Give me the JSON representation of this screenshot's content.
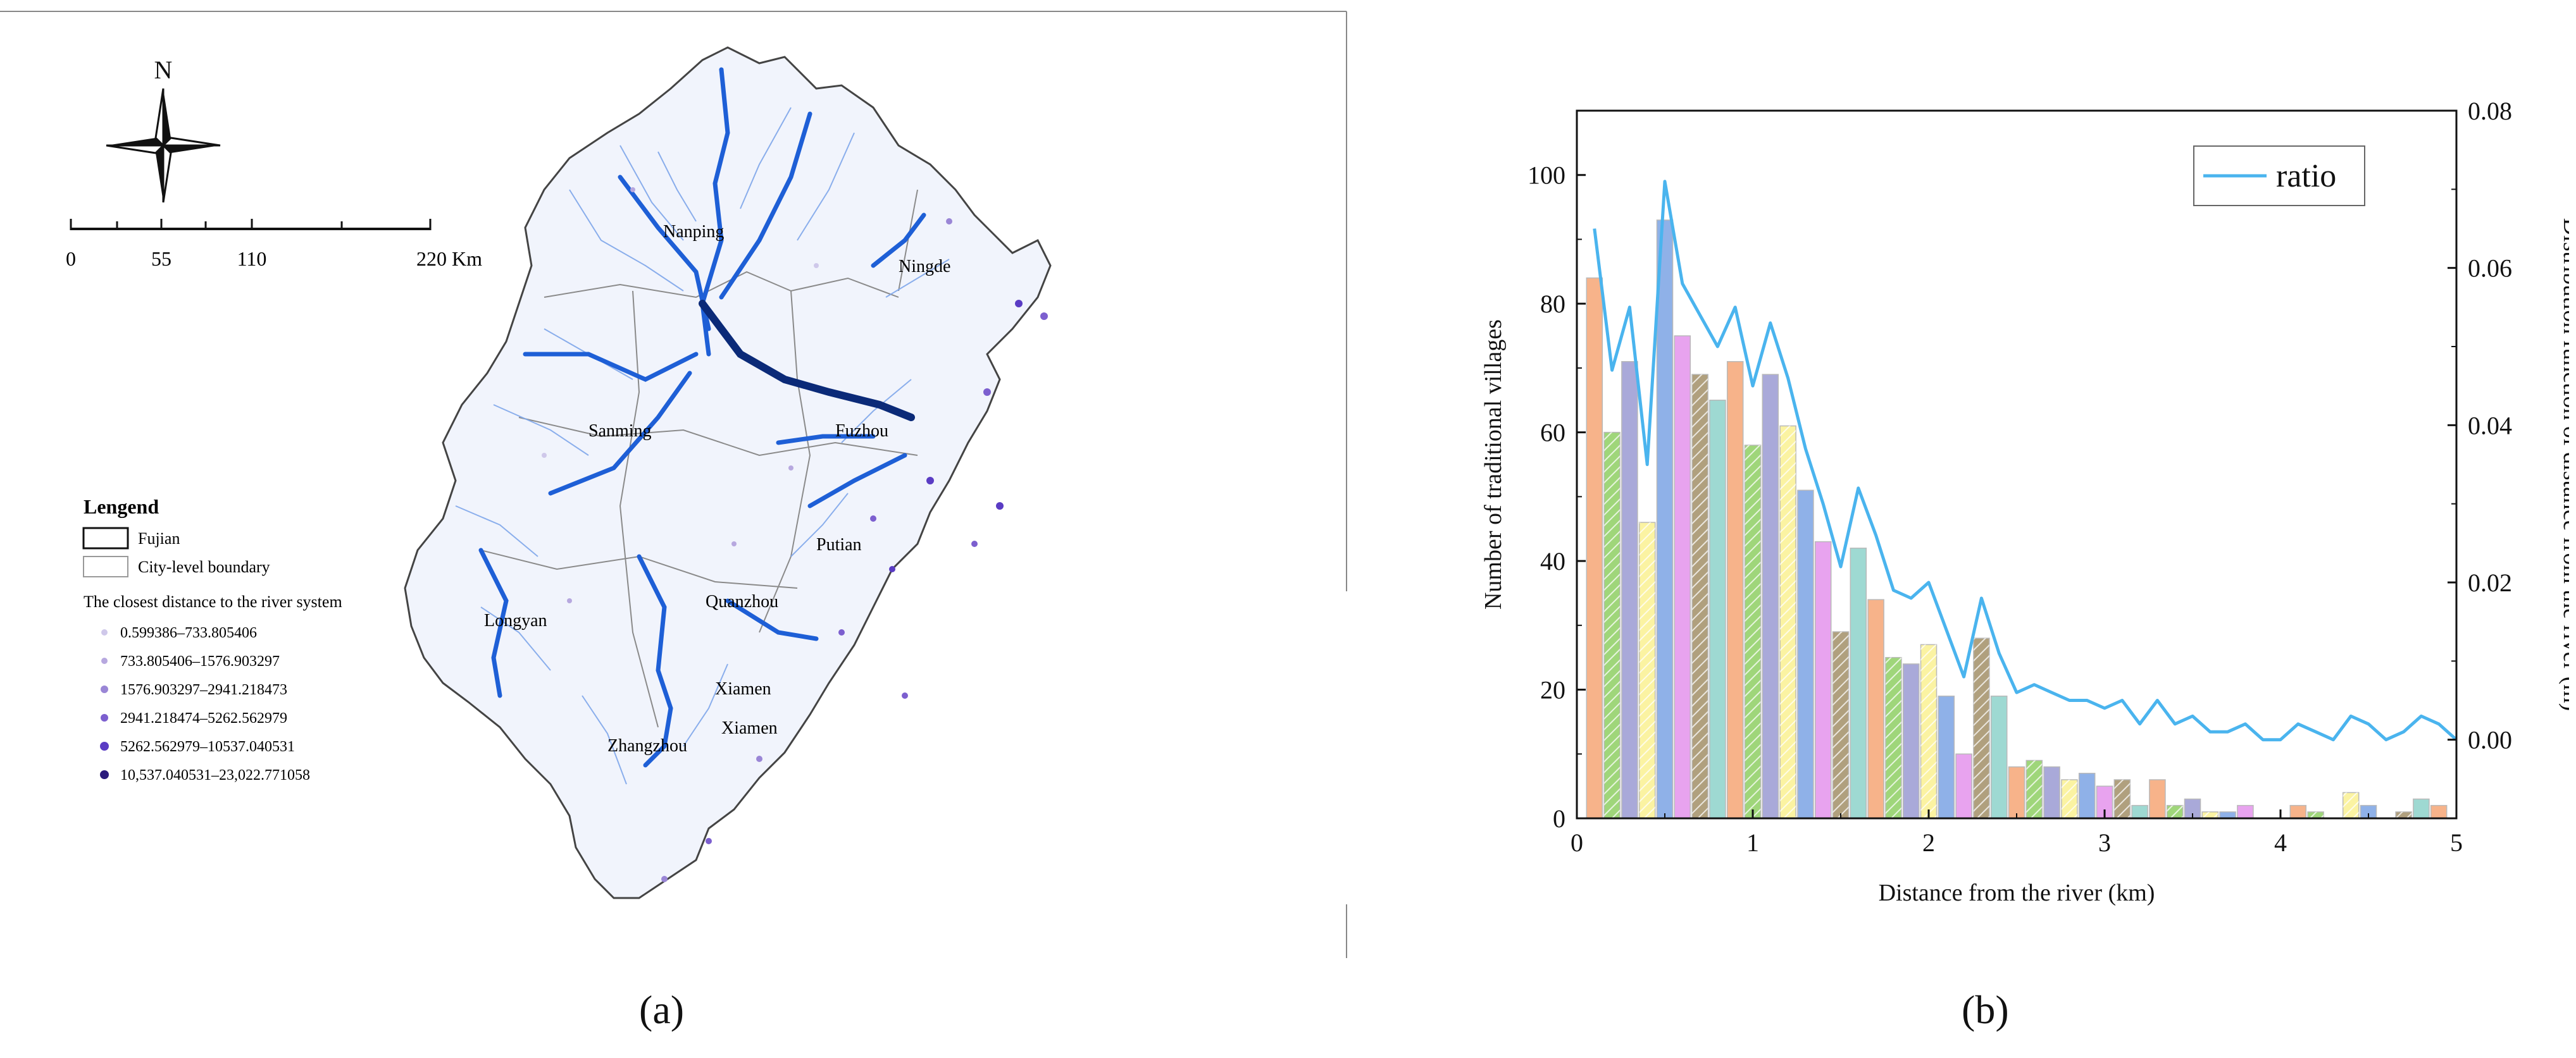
{
  "panels": {
    "a": {
      "label": "(a)"
    },
    "b": {
      "label": "(b)"
    }
  },
  "map": {
    "north": "N",
    "scale_ticks": [
      "0",
      "55",
      "110",
      "220 Km"
    ],
    "legend": {
      "title": "Lengend",
      "items": [
        "Fujian",
        "City-level boundary"
      ],
      "distance_title": "The closest distance to the river system",
      "classes": [
        {
          "label": "0.599386–733.805406",
          "color": "#cfc8ea"
        },
        {
          "label": "733.805406–1576.903297",
          "color": "#b7a8df"
        },
        {
          "label": "1576.903297–2941.218473",
          "color": "#9a86d6"
        },
        {
          "label": "2941.218474–5262.562979",
          "color": "#7c5fcf"
        },
        {
          "label": "5262.562979–10537.040531",
          "color": "#5a3cc4"
        },
        {
          "label": "10,537.040531–23,022.771058",
          "color": "#2a1a7c"
        }
      ]
    },
    "cities": [
      "Nanping",
      "Ningde",
      "Sanming",
      "Fuzhou",
      "Putian",
      "Longyan",
      "Quanzhou",
      "Xiamen",
      "Xiamen",
      "Zhangzhou"
    ],
    "colors": {
      "river": "#1e5fd6",
      "river_dark": "#0b2a78",
      "tributary": "#7ea6ea",
      "boundary": "#666666"
    }
  },
  "chart_data": {
    "type": "bar",
    "xlabel": "Distance from the river (km)",
    "ylabel": "Number of traditional villages",
    "ylabel_right": "Distribution function of distance from the river (m)",
    "xlim": [
      0,
      5
    ],
    "ylim": [
      0,
      110
    ],
    "ylim_right": [
      -0.01,
      0.08
    ],
    "x_ticks": [
      "0",
      "1",
      "2",
      "3",
      "4",
      "5"
    ],
    "y_ticks": [
      "0",
      "20",
      "40",
      "60",
      "80",
      "100"
    ],
    "y_right_ticks": [
      "0.00",
      "0.02",
      "0.04",
      "0.06",
      "0.08"
    ],
    "bar_width": 0.09,
    "bars": {
      "x": [
        0.1,
        0.2,
        0.3,
        0.4,
        0.5,
        0.6,
        0.7,
        0.8,
        0.9,
        1.0,
        1.1,
        1.2,
        1.3,
        1.4,
        1.5,
        1.6,
        1.7,
        1.8,
        1.9,
        2.0,
        2.1,
        2.2,
        2.3,
        2.4,
        2.5,
        2.6,
        2.7,
        2.8,
        2.9,
        3.0,
        3.1,
        3.2,
        3.3,
        3.4,
        3.5,
        3.6,
        3.7,
        3.8,
        3.9,
        4.0,
        4.1,
        4.2,
        4.3,
        4.4,
        4.5,
        4.6,
        4.7,
        4.8,
        4.9
      ],
      "values": [
        84,
        60,
        71,
        46,
        93,
        75,
        69,
        65,
        71,
        58,
        69,
        61,
        51,
        43,
        29,
        42,
        34,
        25,
        24,
        27,
        19,
        10,
        28,
        19,
        8,
        9,
        8,
        6,
        7,
        5,
        6,
        2,
        6,
        2,
        3,
        1,
        1,
        2,
        0,
        0,
        2,
        1,
        0,
        4,
        2,
        0,
        1,
        3,
        2
      ]
    },
    "bar_palette": [
      {
        "color": "#f7b38a",
        "hatch": false
      },
      {
        "color": "#9fd67a",
        "hatch": true
      },
      {
        "color": "#a9a9d9",
        "hatch": false
      },
      {
        "color": "#fbf3a2",
        "hatch": true
      },
      {
        "color": "#8fb1e8",
        "hatch": false
      },
      {
        "color": "#e8a3ef",
        "hatch": false
      },
      {
        "color": "#b0a07e",
        "hatch": true
      },
      {
        "color": "#9ed9d2",
        "hatch": false
      }
    ],
    "series": [
      {
        "name": "ratio",
        "color": "#4ab4ee",
        "x": [
          0.1,
          0.2,
          0.3,
          0.4,
          0.5,
          0.6,
          0.7,
          0.8,
          0.9,
          1.0,
          1.1,
          1.2,
          1.3,
          1.4,
          1.5,
          1.6,
          1.7,
          1.8,
          1.9,
          2.0,
          2.1,
          2.2,
          2.3,
          2.4,
          2.5,
          2.6,
          2.7,
          2.8,
          2.9,
          3.0,
          3.1,
          3.2,
          3.3,
          3.4,
          3.5,
          3.6,
          3.7,
          3.8,
          3.9,
          4.0,
          4.1,
          4.2,
          4.3,
          4.4,
          4.5,
          4.6,
          4.7,
          4.8,
          4.9,
          5.0
        ],
        "values": [
          0.065,
          0.047,
          0.055,
          0.035,
          0.071,
          0.058,
          0.054,
          0.05,
          0.055,
          0.045,
          0.053,
          0.046,
          0.037,
          0.03,
          0.022,
          0.032,
          0.026,
          0.019,
          0.018,
          0.02,
          0.014,
          0.008,
          0.018,
          0.011,
          0.006,
          0.007,
          0.006,
          0.005,
          0.005,
          0.004,
          0.005,
          0.002,
          0.005,
          0.002,
          0.003,
          0.001,
          0.001,
          0.002,
          0.0,
          0.0,
          0.002,
          0.001,
          0.0,
          0.003,
          0.002,
          0.0,
          0.001,
          0.003,
          0.002,
          0.0
        ]
      }
    ],
    "legend_position": "top-right"
  }
}
